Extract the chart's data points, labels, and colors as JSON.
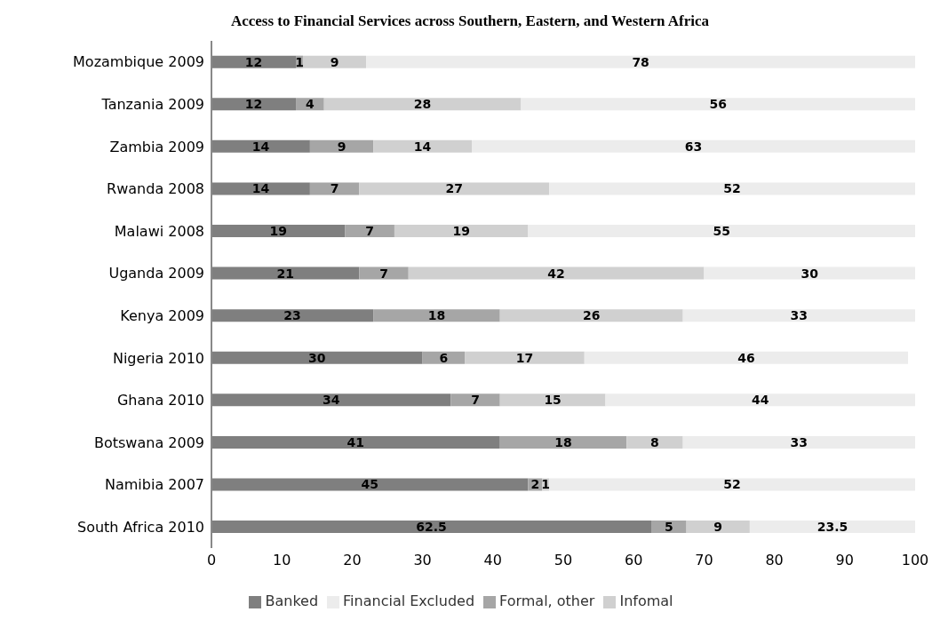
{
  "chart_data": {
    "type": "bar",
    "title": "Access to Financial Services across Southern, Eastern, and Western Africa",
    "orientation": "horizontal",
    "stacked": true,
    "data_labels": true,
    "legend": "bottom",
    "grid": false,
    "categories": [
      "Mozambique 2009",
      "Tanzania 2009",
      "Zambia 2009",
      "Rwanda 2008",
      "Malawi 2008",
      "Uganda 2009",
      "Kenya 2009",
      "Nigeria 2010",
      "Ghana 2010",
      "Botswana 2009",
      "Namibia 2007",
      "South Africa 2010"
    ],
    "series": [
      {
        "name": "Banked",
        "color": "#7f7f7f",
        "values": [
          12,
          12,
          14,
          14,
          19,
          21,
          23,
          30,
          34,
          41,
          45,
          62.5
        ]
      },
      {
        "name": "Formal, other",
        "color": "#a6a6a6",
        "values": [
          1,
          4,
          9,
          7,
          7,
          7,
          18,
          6,
          7,
          18,
          2,
          5
        ]
      },
      {
        "name": "Infomal",
        "color": "#d0d0d0",
        "values": [
          9,
          28,
          14,
          27,
          19,
          42,
          26,
          17,
          15,
          8,
          1,
          9
        ]
      },
      {
        "name": "Financial Excluded",
        "color": "#ececec",
        "values": [
          78,
          56,
          63,
          52,
          55,
          30,
          33,
          46,
          44,
          33,
          52,
          23.5
        ]
      }
    ],
    "xlim": [
      0,
      100
    ],
    "xticks": [
      0,
      10,
      20,
      30,
      40,
      50,
      60,
      70,
      80,
      90,
      100
    ]
  }
}
